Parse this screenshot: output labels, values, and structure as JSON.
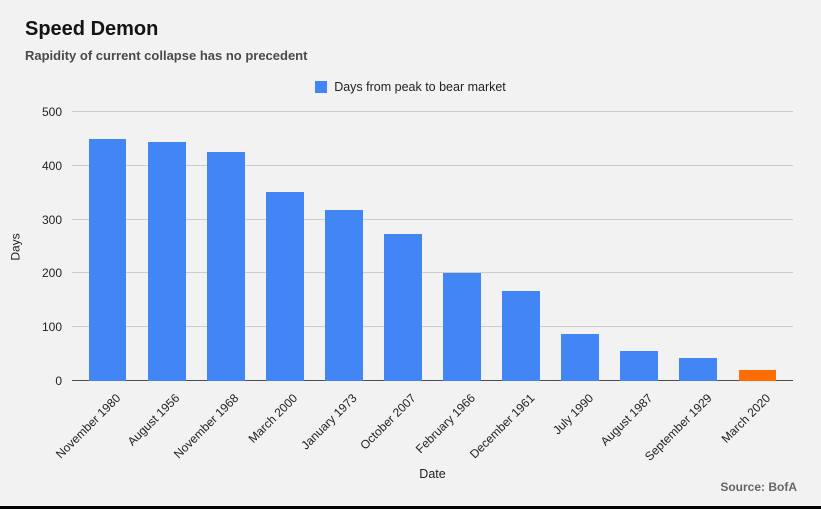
{
  "header": {
    "title": "Speed Demon",
    "subtitle": "Rapidity of current collapse has no precedent"
  },
  "footer": {
    "source": "Source: BofA"
  },
  "chart_data": {
    "type": "bar",
    "title": "Speed Demon",
    "subtitle": "Rapidity of current collapse has no precedent",
    "legend": "Days from peak to bear market",
    "legend_position": "top",
    "xlabel": "Date",
    "ylabel": "Days",
    "ylim": [
      0,
      500
    ],
    "yticks": [
      0,
      100,
      200,
      300,
      400,
      500
    ],
    "grid": true,
    "categories": [
      "November 1980",
      "August 1956",
      "November 1968",
      "March 2000",
      "January 1973",
      "October 2007",
      "February 1966",
      "December 1961",
      "July 1990",
      "August 1987",
      "September 1929",
      "March 2020"
    ],
    "values": [
      450,
      445,
      425,
      352,
      318,
      273,
      200,
      167,
      87,
      55,
      42,
      20
    ],
    "colors": {
      "bar": "#4285f4",
      "highlight": "#ff6d00"
    },
    "highlight_index": 11,
    "source": "Source: BofA"
  }
}
